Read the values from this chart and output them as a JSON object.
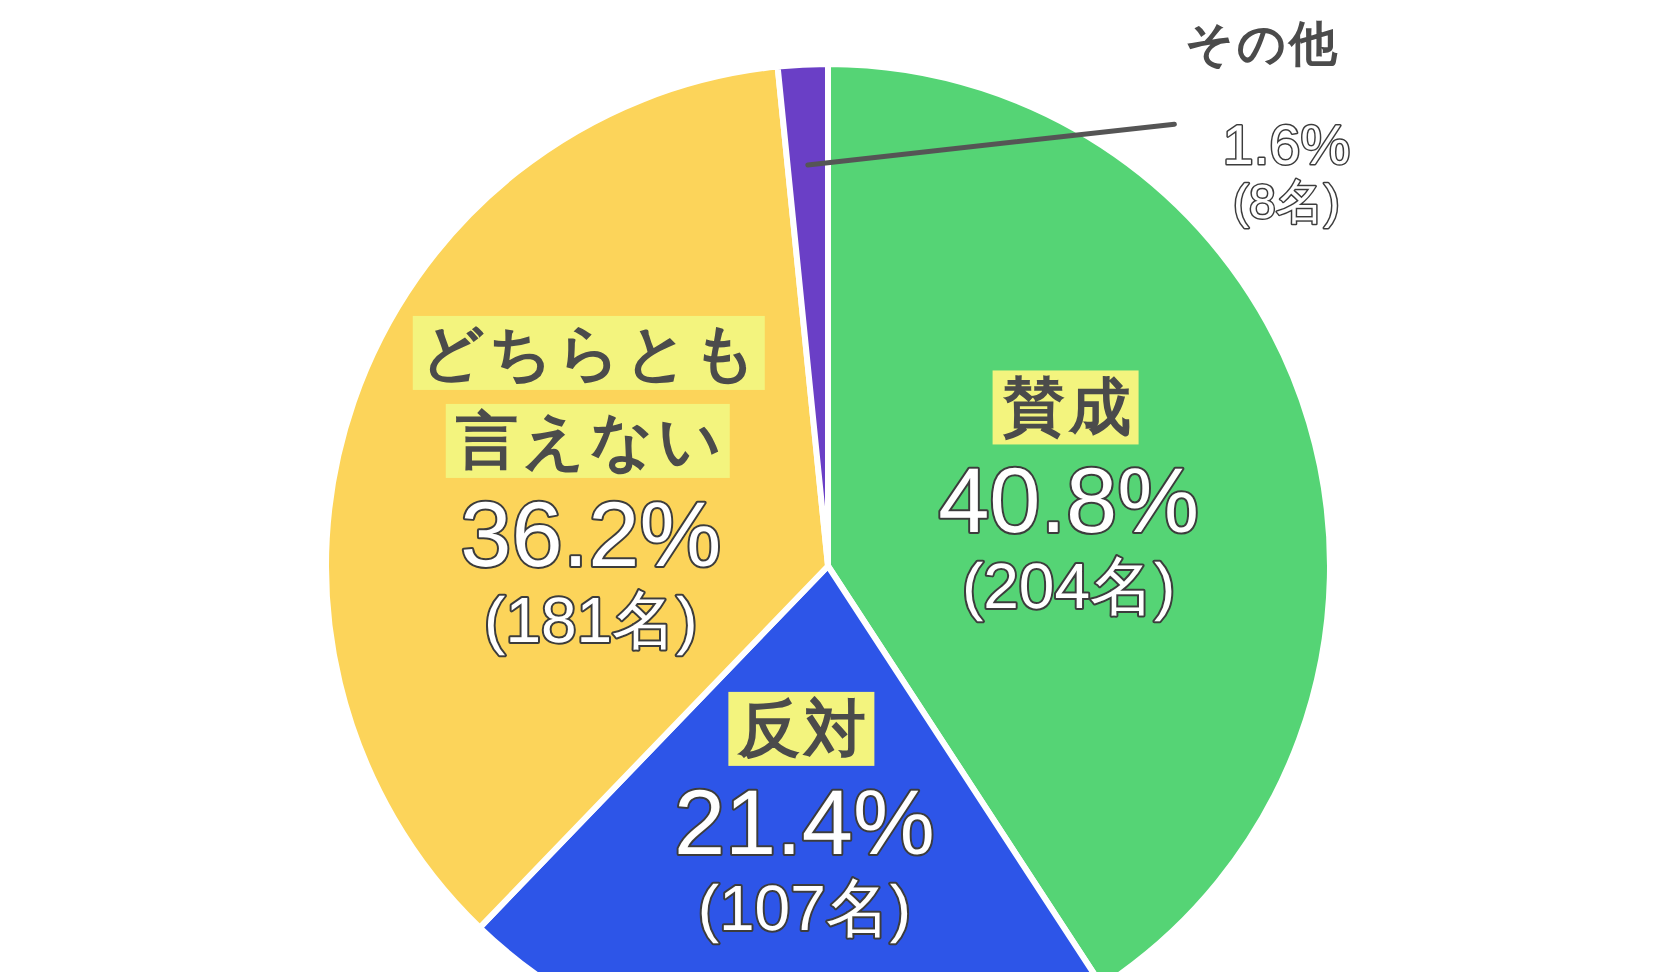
{
  "chart_data": {
    "type": "pie",
    "categories": [
      "賛成",
      "反対",
      "どちらとも言えない",
      "その他"
    ],
    "values": [
      40.8,
      21.4,
      36.2,
      1.6
    ],
    "colors": [
      "#55d475",
      "#2d55e8",
      "#fcd45a",
      "#6a3fc6"
    ],
    "value_labels": [
      "40.8%\n(204名)",
      "21.4%\n(107名)",
      "36.2%\n(181名)",
      "1.6%\n(8名)"
    ]
  }
}
